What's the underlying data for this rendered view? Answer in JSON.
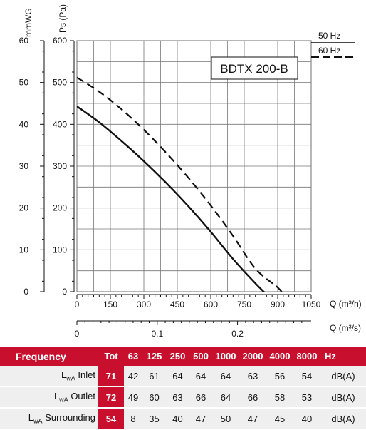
{
  "chart_data": {
    "type": "line",
    "model_label": "BDTX 200-B",
    "axes": {
      "mmwg_label": "mmWG",
      "ps_label": "Ps (Pa)",
      "mmwg_ticks": [
        "60",
        "50",
        "40",
        "30",
        "20",
        "10",
        "0"
      ],
      "ps_ticks": [
        "600",
        "500",
        "400",
        "300",
        "200",
        "100",
        "0"
      ],
      "ylim": [
        0,
        600
      ],
      "q_m3h_label": "Q (m³/h)",
      "q_m3h_ticks": [
        "0",
        "150",
        "300",
        "450",
        "600",
        "750",
        "900",
        "1050"
      ],
      "xlim": [
        0,
        1050
      ],
      "q_m3s_label": "Q (m³/s)",
      "q_m3s_ticks": [
        "0",
        "0.1",
        "0.2"
      ]
    },
    "grid": true,
    "legend_position": "top-right",
    "series": [
      {
        "name": "50 Hz",
        "style": "solid",
        "points": [
          [
            0,
            443
          ],
          [
            100,
            405
          ],
          [
            200,
            360
          ],
          [
            300,
            312
          ],
          [
            400,
            260
          ],
          [
            500,
            204
          ],
          [
            600,
            143
          ],
          [
            700,
            78
          ],
          [
            800,
            20
          ],
          [
            870,
            -17
          ]
        ]
      },
      {
        "name": "60 Hz",
        "style": "dashed",
        "points": [
          [
            0,
            512
          ],
          [
            100,
            478
          ],
          [
            200,
            436
          ],
          [
            300,
            387
          ],
          [
            400,
            332
          ],
          [
            500,
            272
          ],
          [
            600,
            206
          ],
          [
            700,
            133
          ],
          [
            800,
            55
          ],
          [
            900,
            10
          ],
          [
            940,
            -15
          ]
        ]
      }
    ]
  },
  "sound_table": {
    "header": {
      "label": "Frequency",
      "tot": "Tot",
      "bands": [
        "63",
        "125",
        "250",
        "500",
        "1000",
        "2000",
        "4000",
        "8000"
      ],
      "unit": "Hz"
    },
    "rows": [
      {
        "sym": "L",
        "sub": "wA",
        "name": "Inlet",
        "tot": "71",
        "values": [
          "42",
          "61",
          "64",
          "64",
          "64",
          "63",
          "56",
          "54"
        ],
        "unit": "dB(A)"
      },
      {
        "sym": "L",
        "sub": "wA",
        "name": "Outlet",
        "tot": "72",
        "values": [
          "49",
          "60",
          "63",
          "66",
          "64",
          "66",
          "58",
          "53"
        ],
        "unit": "dB(A)"
      },
      {
        "sym": "L",
        "sub": "wA",
        "name": "Surrounding",
        "tot": "54",
        "values": [
          "8",
          "35",
          "40",
          "47",
          "50",
          "47",
          "45",
          "40"
        ],
        "unit": "dB(A)"
      }
    ]
  }
}
